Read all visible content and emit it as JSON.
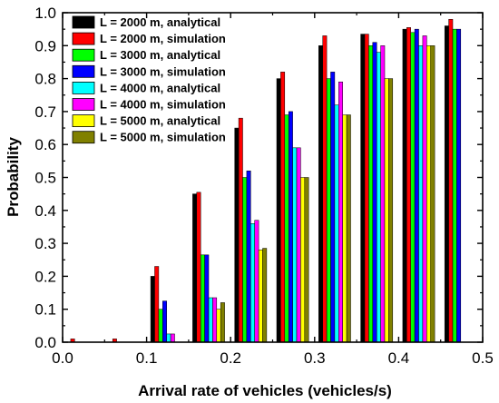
{
  "chart_data": {
    "type": "bar",
    "xlabel": "Arrival rate of vehicles (vehicles/s)",
    "ylabel": "Probability",
    "xlim": [
      0.0,
      0.5
    ],
    "ylim": [
      0.0,
      1.0
    ],
    "x_ticks": [
      "0.0",
      "0.1",
      "0.2",
      "0.3",
      "0.4",
      "0.5"
    ],
    "y_ticks": [
      "0.0",
      "0.1",
      "0.2",
      "0.3",
      "0.4",
      "0.5",
      "0.6",
      "0.7",
      "0.8",
      "0.9",
      "1.0"
    ],
    "legend_position": "top-left",
    "categories": [
      0.05,
      0.1,
      0.15,
      0.2,
      0.25,
      0.3,
      0.35,
      0.4,
      0.45,
      0.5
    ],
    "series": [
      {
        "name": "L = 2000 m, analytical",
        "color": "#000000",
        "values": [
          0.0,
          0.0,
          0.2,
          0.45,
          0.65,
          0.8,
          0.9,
          0.935,
          0.95,
          0.96
        ]
      },
      {
        "name": "L = 2000 m, simulation",
        "color": "#ff0000",
        "values": [
          0.01,
          0.01,
          0.23,
          0.455,
          0.68,
          0.82,
          0.93,
          0.935,
          0.955,
          0.98
        ]
      },
      {
        "name": "L = 3000 m, analytical",
        "color": "#00ff00",
        "values": [
          0.0,
          0.0,
          0.1,
          0.265,
          0.5,
          0.69,
          0.8,
          0.9,
          0.94,
          0.95
        ]
      },
      {
        "name": "L = 3000 m, simulation",
        "color": "#0000ff",
        "values": [
          0.0,
          0.0,
          0.125,
          0.265,
          0.52,
          0.7,
          0.82,
          0.91,
          0.95,
          0.95
        ]
      },
      {
        "name": "L = 4000 m, analytical",
        "color": "#00ffff",
        "values": [
          0.0,
          0.0,
          0.025,
          0.135,
          0.36,
          0.59,
          0.72,
          0.88,
          0.9,
          null
        ]
      },
      {
        "name": "L = 4000 m, simulation",
        "color": "#ff00ff",
        "values": [
          0.0,
          0.0,
          0.025,
          0.135,
          0.37,
          0.59,
          0.79,
          0.9,
          0.93,
          null
        ]
      },
      {
        "name": "L = 5000 m, analytical",
        "color": "#ffff00",
        "values": [
          0.0,
          0.0,
          0.0,
          0.1,
          0.28,
          0.5,
          0.69,
          0.8,
          0.9,
          null
        ]
      },
      {
        "name": "L = 5000 m, simulation",
        "color": "#808000",
        "values": [
          0.0,
          0.0,
          0.0,
          0.12,
          0.285,
          0.5,
          0.69,
          0.8,
          0.9,
          null
        ]
      }
    ]
  }
}
